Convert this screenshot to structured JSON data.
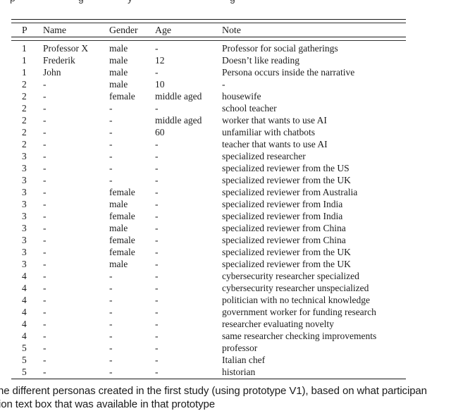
{
  "colors": {
    "background": "#ffffff",
    "text": "#1c1c1c",
    "rule": "#1a1a1a"
  },
  "top_fragments": [
    "p",
    "g",
    "y",
    "g"
  ],
  "table": {
    "columns": [
      "P",
      "Name",
      "Gender",
      "Age",
      "Note"
    ],
    "rows": [
      [
        "1",
        "Professor X",
        "male",
        "-",
        "Professor for social gatherings"
      ],
      [
        "1",
        "Frederik",
        "male",
        "12",
        "Doesn’t like reading"
      ],
      [
        "1",
        "John",
        "male",
        "-",
        "Persona occurs inside the narrative"
      ],
      [
        "2",
        "-",
        "male",
        "10",
        "-"
      ],
      [
        "2",
        "-",
        "female",
        "middle aged",
        "housewife"
      ],
      [
        "2",
        "-",
        "-",
        "-",
        "school teacher"
      ],
      [
        "2",
        "-",
        "-",
        "middle aged",
        "worker that wants to use AI"
      ],
      [
        "2",
        "-",
        "-",
        "60",
        "unfamiliar with chatbots"
      ],
      [
        "2",
        "-",
        "-",
        "-",
        "teacher that wants to use AI"
      ],
      [
        "3",
        "-",
        "-",
        "-",
        "specialized researcher"
      ],
      [
        "3",
        "-",
        "-",
        "-",
        "specialized reviewer from the US"
      ],
      [
        "3",
        "-",
        "-",
        "-",
        "specialized reviewer from the UK"
      ],
      [
        "3",
        "-",
        "female",
        "-",
        "specialized reviewer from Australia"
      ],
      [
        "3",
        "-",
        "male",
        "-",
        "specialized reviewer from India"
      ],
      [
        "3",
        "-",
        "female",
        "-",
        "specialized reviewer from India"
      ],
      [
        "3",
        "-",
        "male",
        "-",
        "specialized reviewer from China"
      ],
      [
        "3",
        "-",
        "female",
        "-",
        "specialized reviewer from China"
      ],
      [
        "3",
        "-",
        "female",
        "-",
        "specialized reviewer from the UK"
      ],
      [
        "3",
        "-",
        "male",
        "-",
        "specialized reviewer from the UK"
      ],
      [
        "4",
        "-",
        "-",
        "-",
        "cybersecurity researcher specialized"
      ],
      [
        "4",
        "-",
        "-",
        "-",
        "cybersecurity researcher unspecialized"
      ],
      [
        "4",
        "-",
        "-",
        "-",
        "politician with no technical knowledge"
      ],
      [
        "4",
        "-",
        "-",
        "-",
        "government worker for funding research"
      ],
      [
        "4",
        "-",
        "-",
        "-",
        "researcher evaluating novelty"
      ],
      [
        "4",
        "-",
        "-",
        "-",
        "same researcher checking improvements"
      ],
      [
        "5",
        "-",
        "-",
        "-",
        "professor"
      ],
      [
        "5",
        "-",
        "-",
        "-",
        "Italian chef"
      ],
      [
        "5",
        "-",
        "-",
        "-",
        "historian"
      ]
    ]
  },
  "caption": {
    "line1": "ne different personas created in the first study (using prototype V1), based on what participan",
    "line2": "ion text box that was available in that prototype"
  }
}
